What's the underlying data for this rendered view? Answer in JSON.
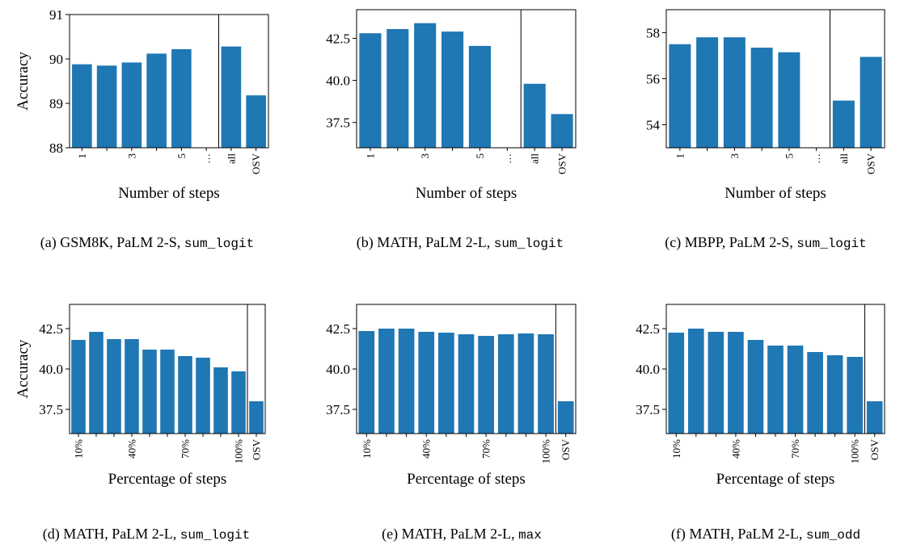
{
  "chart_data": [
    {
      "type": "bar",
      "caption_prefix": "(a) GSM8K, PaLM 2-S,",
      "caption_code": "sum_logit",
      "xlabel": "Number of steps",
      "ylabel": "Accuracy",
      "ylim": [
        88,
        91
      ],
      "yticks": [
        "88",
        "89",
        "90",
        "91"
      ],
      "categories": [
        "1",
        "",
        "3",
        "",
        "5",
        "…",
        "all",
        "OSV"
      ],
      "values": [
        89.88,
        89.85,
        89.92,
        90.12,
        90.22,
        null,
        90.28,
        89.18
      ],
      "separator_after_index": 5
    },
    {
      "type": "bar",
      "caption_prefix": "(b) MATH, PaLM 2-L,",
      "caption_code": "sum_logit",
      "xlabel": "Number of steps",
      "ylabel": "",
      "ylim": [
        36.0,
        44.2
      ],
      "yticks": [
        "37.5",
        "40.0",
        "42.5"
      ],
      "categories": [
        "1",
        "",
        "3",
        "",
        "5",
        "…",
        "all",
        "OSV"
      ],
      "values": [
        42.8,
        43.05,
        43.4,
        42.9,
        42.05,
        null,
        39.8,
        38.0
      ],
      "separator_after_index": 5
    },
    {
      "type": "bar",
      "caption_prefix": "(c) MBPP, PaLM 2-S,",
      "caption_code": "sum_logit",
      "xlabel": "Number of steps",
      "ylabel": "",
      "ylim": [
        53.0,
        59.0
      ],
      "yticks": [
        "54",
        "56",
        "58"
      ],
      "categories": [
        "1",
        "",
        "3",
        "",
        "5",
        "…",
        "all",
        "OSV"
      ],
      "values": [
        57.5,
        57.8,
        57.8,
        57.35,
        57.15,
        null,
        55.05,
        56.95
      ],
      "separator_after_index": 5
    },
    {
      "type": "bar",
      "caption_prefix": "(d) MATH, PaLM 2-L,",
      "caption_code": "sum_logit",
      "xlabel": "Percentage of steps",
      "ylabel": "Accuracy",
      "ylim": [
        36.0,
        44.0
      ],
      "yticks": [
        "37.5",
        "40.0",
        "42.5"
      ],
      "categories": [
        "10%",
        "",
        "",
        "40%",
        "",
        "",
        "70%",
        "",
        "",
        "100%",
        "OSV"
      ],
      "values": [
        41.8,
        42.3,
        41.85,
        41.85,
        41.2,
        41.2,
        40.8,
        40.7,
        40.1,
        39.85,
        38.0
      ],
      "separator_after_index": 9
    },
    {
      "type": "bar",
      "caption_prefix": "(e) MATH, PaLM 2-L,",
      "caption_code": "max",
      "xlabel": "Percentage of steps",
      "ylabel": "",
      "ylim": [
        36.0,
        44.0
      ],
      "yticks": [
        "37.5",
        "40.0",
        "42.5"
      ],
      "categories": [
        "10%",
        "",
        "",
        "40%",
        "",
        "",
        "70%",
        "",
        "",
        "100%",
        "OSV"
      ],
      "values": [
        42.35,
        42.5,
        42.5,
        42.3,
        42.25,
        42.15,
        42.05,
        42.15,
        42.2,
        42.15,
        38.0
      ],
      "separator_after_index": 9
    },
    {
      "type": "bar",
      "caption_prefix": "(f) MATH, PaLM 2-L,",
      "caption_code": "sum_odd",
      "xlabel": "Percentage of steps",
      "ylabel": "",
      "ylim": [
        36.0,
        44.0
      ],
      "yticks": [
        "37.5",
        "40.0",
        "42.5"
      ],
      "categories": [
        "10%",
        "",
        "",
        "40%",
        "",
        "",
        "70%",
        "",
        "",
        "100%",
        "OSV"
      ],
      "values": [
        42.25,
        42.5,
        42.3,
        42.3,
        41.8,
        41.45,
        41.45,
        41.05,
        40.85,
        40.75,
        38.0
      ],
      "separator_after_index": 9
    }
  ],
  "colors": {
    "bar": "#1f77b4",
    "axis": "#000000"
  }
}
